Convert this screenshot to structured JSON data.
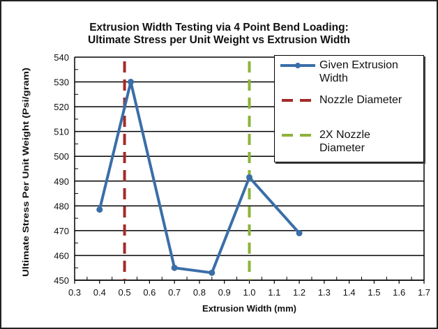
{
  "chart_data": {
    "type": "line",
    "title": "Extrusion Width Testing via 4 Point Bend Loading:",
    "subtitle": "Ultimate Stress  per Unit Weight vs Extrusion Width",
    "xlabel": "Extrusion Width (mm)",
    "ylabel": "Ultimate Stress Per Unit Weight (Psi/gram)",
    "xlim": [
      0.3,
      1.7
    ],
    "ylim": [
      450,
      540
    ],
    "xticks": [
      "0.3",
      "0.4",
      "0.5",
      "0.6",
      "0.7",
      "0.8",
      "0.9",
      "1.0",
      "1.1",
      "1.2",
      "1.3",
      "1.4",
      "1.5",
      "1.6",
      "1.7"
    ],
    "yticks": [
      "450",
      "460",
      "470",
      "480",
      "490",
      "500",
      "510",
      "520",
      "530",
      "540"
    ],
    "grid": "horizontal major",
    "legend_position": "top-right",
    "series": [
      {
        "name": "Given Extrusion Width",
        "kind": "line-markers",
        "color": "#3a6ea8",
        "x": [
          0.4,
          0.525,
          0.7,
          0.85,
          1.0,
          1.2
        ],
        "y": [
          478.5,
          530,
          455,
          453,
          491.5,
          469
        ]
      },
      {
        "name": "Nozzle Diameter",
        "kind": "vertical-dashed",
        "color": "#a32a2a",
        "x": 0.5
      },
      {
        "name": "2X Nozzle Diameter",
        "kind": "vertical-dashed",
        "color": "#8db33a",
        "x": 1.0
      }
    ]
  },
  "legend": {
    "items": [
      "Given Extrusion Width",
      "Nozzle Diameter",
      "2X Nozzle Diameter"
    ]
  }
}
